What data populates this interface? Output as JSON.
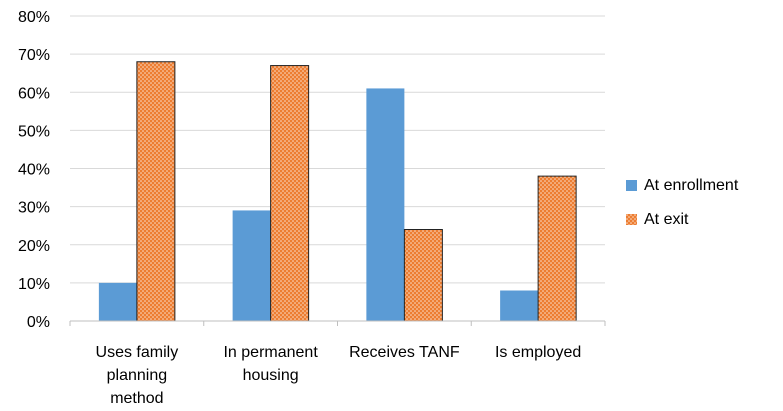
{
  "chart_data": {
    "type": "bar",
    "categories": [
      [
        "Uses family",
        "planning",
        "method"
      ],
      [
        "In permanent",
        "housing"
      ],
      [
        "Receives TANF"
      ],
      [
        "Is employed"
      ]
    ],
    "series": [
      {
        "name": "At enrollment",
        "values": [
          10,
          29,
          61,
          8
        ],
        "color": "#5b9bd5",
        "pattern": "solid"
      },
      {
        "name": "At exit",
        "values": [
          68,
          67,
          24,
          38
        ],
        "color": "#ed7d31",
        "pattern": "dotted"
      }
    ],
    "yticks": [
      "0%",
      "10%",
      "20%",
      "30%",
      "40%",
      "50%",
      "60%",
      "70%",
      "80%"
    ],
    "ylim": [
      0,
      80
    ],
    "grid": true,
    "legend_position": "right"
  }
}
